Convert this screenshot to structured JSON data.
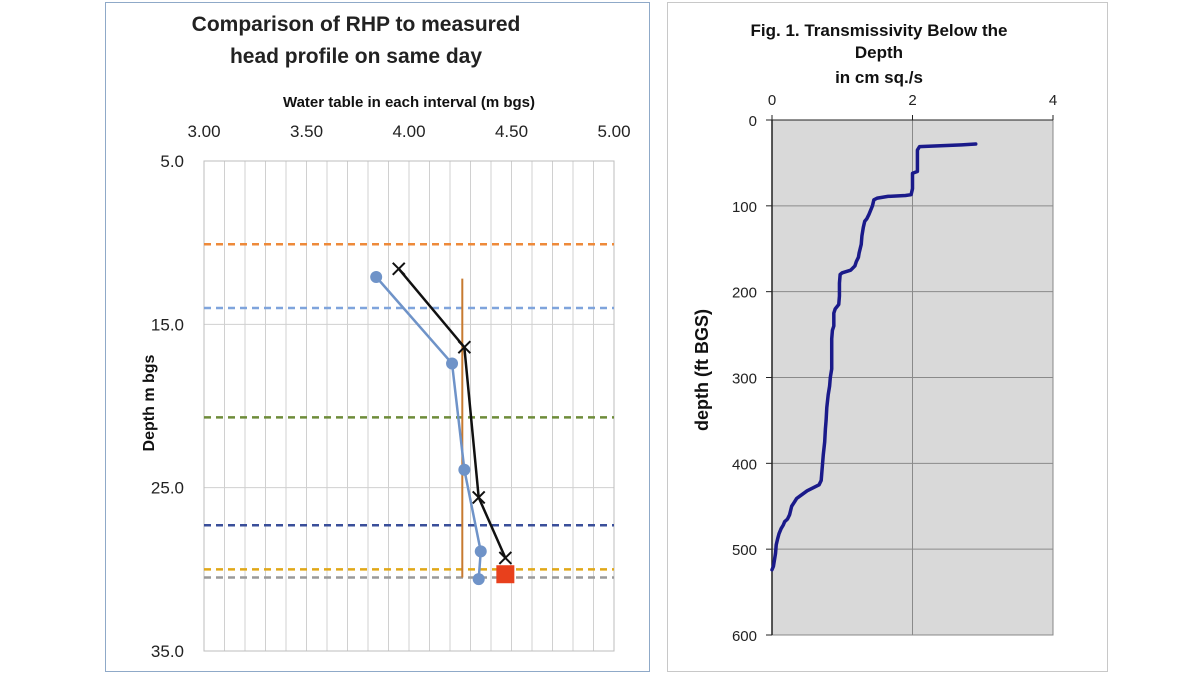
{
  "chart_data": [
    {
      "type": "line",
      "title_lines": [
        "Comparison of RHP to measured",
        "head profile on same day"
      ],
      "xlabel": "Water table in each interval (m bgs)",
      "ylabel": "Depth m bgs",
      "xlim": [
        3.0,
        5.0
      ],
      "ylim": [
        5.0,
        35.0
      ],
      "x_ticks": [
        "3.00",
        "3.50",
        "4.00",
        "4.50",
        "5.00"
      ],
      "y_ticks": [
        "5.0",
        "15.0",
        "25.0",
        "35.0"
      ],
      "x_gridlines_step": 0.1,
      "y_reversed": true,
      "horizontal_lines": [
        {
          "depth": 10.1,
          "color": "#ee8a3a"
        },
        {
          "depth": 14.0,
          "color": "#7fa4dc"
        },
        {
          "depth": 20.7,
          "color": "#6e8c3a"
        },
        {
          "depth": 27.3,
          "color": "#3a4f9a"
        },
        {
          "depth": 30.0,
          "color": "#e0a818"
        },
        {
          "depth": 30.5,
          "color": "#9a9a9a"
        }
      ],
      "vertical_line": {
        "x": 4.26,
        "y_from": 12.2,
        "y_to": 30.5,
        "color": "#c77a30"
      },
      "series": [
        {
          "name": "blue-circles",
          "color": "#6f93c8",
          "marker": "circle",
          "points": [
            [
              3.84,
              12.1
            ],
            [
              4.21,
              17.4
            ],
            [
              4.27,
              23.9
            ],
            [
              4.35,
              28.9
            ],
            [
              4.34,
              30.6
            ]
          ]
        },
        {
          "name": "black-crosses",
          "color": "#111111",
          "marker": "x",
          "points": [
            [
              3.95,
              11.6
            ],
            [
              4.27,
              16.4
            ],
            [
              4.34,
              25.6
            ],
            [
              4.47,
              29.3
            ]
          ]
        }
      ],
      "red_square": {
        "x": 4.47,
        "y": 30.3,
        "color": "#e8401c"
      }
    },
    {
      "type": "line",
      "title_lines": [
        "Fig. 1.  Transmissivity Below the",
        "Depth",
        "in cm sq./s"
      ],
      "xlabel": "",
      "ylabel": "depth (ft BGS)",
      "xlim": [
        0,
        4
      ],
      "ylim": [
        0,
        600
      ],
      "x_ticks": [
        "0",
        "2",
        "4"
      ],
      "y_ticks": [
        "0",
        "100",
        "200",
        "300",
        "400",
        "500",
        "600"
      ],
      "y_reversed": true,
      "series": [
        {
          "name": "transmissivity",
          "color": "#1a1a8a",
          "points": [
            [
              2.9,
              28
            ],
            [
              2.7,
              29
            ],
            [
              2.4,
              30
            ],
            [
              2.1,
              31
            ],
            [
              2.07,
              35
            ],
            [
              2.07,
              50
            ],
            [
              2.07,
              60
            ],
            [
              2.0,
              62
            ],
            [
              2.0,
              80
            ],
            [
              1.98,
              87
            ],
            [
              1.9,
              88
            ],
            [
              1.65,
              89
            ],
            [
              1.5,
              91
            ],
            [
              1.45,
              93
            ],
            [
              1.43,
              100
            ],
            [
              1.38,
              110
            ],
            [
              1.35,
              115
            ],
            [
              1.32,
              118
            ],
            [
              1.3,
              125
            ],
            [
              1.28,
              135
            ],
            [
              1.27,
              145
            ],
            [
              1.24,
              155
            ],
            [
              1.23,
              160
            ],
            [
              1.2,
              165
            ],
            [
              1.18,
              170
            ],
            [
              1.12,
              175
            ],
            [
              1.0,
              178
            ],
            [
              0.97,
              180
            ],
            [
              0.96,
              190
            ],
            [
              0.96,
              205
            ],
            [
              0.95,
              215
            ],
            [
              0.9,
              220
            ],
            [
              0.88,
              225
            ],
            [
              0.88,
              240
            ],
            [
              0.86,
              245
            ],
            [
              0.85,
              255
            ],
            [
              0.85,
              290
            ],
            [
              0.83,
              300
            ],
            [
              0.82,
              310
            ],
            [
              0.8,
              320
            ],
            [
              0.78,
              335
            ],
            [
              0.77,
              350
            ],
            [
              0.76,
              360
            ],
            [
              0.75,
              375
            ],
            [
              0.73,
              390
            ],
            [
              0.72,
              400
            ],
            [
              0.71,
              410
            ],
            [
              0.7,
              420
            ],
            [
              0.67,
              425
            ],
            [
              0.5,
              432
            ],
            [
              0.4,
              438
            ],
            [
              0.35,
              441
            ],
            [
              0.32,
              445
            ],
            [
              0.28,
              450
            ],
            [
              0.25,
              460
            ],
            [
              0.22,
              465
            ],
            [
              0.18,
              468
            ],
            [
              0.16,
              472
            ],
            [
              0.13,
              476
            ],
            [
              0.1,
              482
            ],
            [
              0.08,
              488
            ],
            [
              0.06,
              495
            ],
            [
              0.05,
              505
            ],
            [
              0.03,
              515
            ],
            [
              0.02,
              520
            ],
            [
              0.0,
              524
            ]
          ]
        }
      ]
    }
  ]
}
